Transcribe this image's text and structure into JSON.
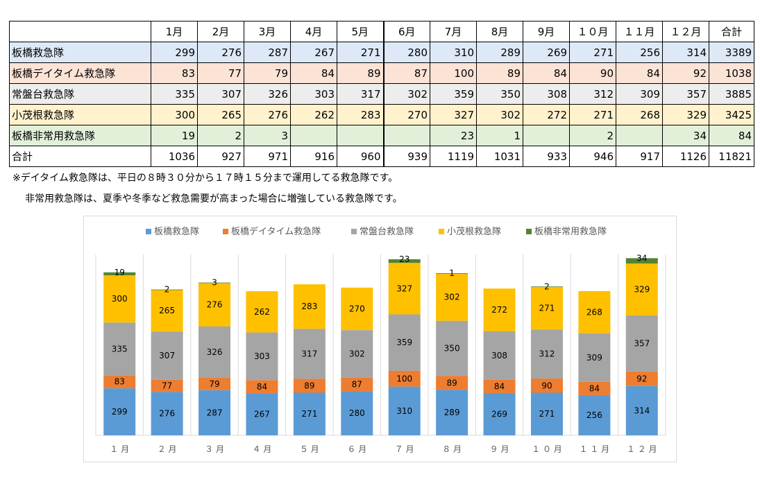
{
  "table": {
    "columns": [
      "1月",
      "2月",
      "3月",
      "4月",
      "5月",
      "6月",
      "7月",
      "8月",
      "9月",
      "１０月",
      "１１月",
      "１２月",
      "合計"
    ],
    "rows": [
      {
        "name": "板橋救急隊",
        "values": [
          "299",
          "276",
          "287",
          "267",
          "271",
          "280",
          "310",
          "289",
          "269",
          "271",
          "256",
          "314",
          "3389"
        ],
        "bg": "#dde9f6"
      },
      {
        "name": "板橋デイタイム救急隊",
        "values": [
          "83",
          "77",
          "79",
          "84",
          "89",
          "87",
          "100",
          "89",
          "84",
          "90",
          "84",
          "92",
          "1038"
        ],
        "bg": "#fbe3d6"
      },
      {
        "name": "常盤台救急隊",
        "values": [
          "335",
          "307",
          "326",
          "303",
          "317",
          "302",
          "359",
          "350",
          "308",
          "312",
          "309",
          "357",
          "3885"
        ],
        "bg": "#ededed"
      },
      {
        "name": "小茂根救急隊",
        "values": [
          "300",
          "265",
          "276",
          "262",
          "283",
          "270",
          "327",
          "302",
          "272",
          "271",
          "268",
          "329",
          "3425"
        ],
        "bg": "#fff2cc"
      },
      {
        "name": "板橋非常用救急隊",
        "values": [
          "19",
          "2",
          "3",
          "",
          "",
          "",
          "23",
          "1",
          "",
          "2",
          "",
          "34",
          "84"
        ],
        "bg": "#e2f0d9"
      },
      {
        "name": "合計",
        "values": [
          "1036",
          "927",
          "971",
          "916",
          "960",
          "939",
          "1119",
          "1031",
          "933",
          "946",
          "917",
          "1126",
          "11821"
        ],
        "bg": "#ffffff"
      }
    ]
  },
  "notes": [
    "※デイタイム救急隊は、平日の８時３０分から１７時１５分まで運用してる救急隊です。",
    "非常用救急隊は、夏季や冬季など救急需要が高まった場合に増強している救急隊です。"
  ],
  "chart_data": {
    "type": "bar",
    "stacked": true,
    "categories": [
      "１月",
      "２月",
      "３月",
      "４月",
      "５月",
      "６月",
      "７月",
      "８月",
      "９月",
      "１０月",
      "１１月",
      "１２月"
    ],
    "series": [
      {
        "name": "板橋救急隊",
        "color": "#5b9bd5",
        "values": [
          299,
          276,
          287,
          267,
          271,
          280,
          310,
          289,
          269,
          271,
          256,
          314
        ]
      },
      {
        "name": "板橋デイタイム救急隊",
        "color": "#ed7d31",
        "values": [
          83,
          77,
          79,
          84,
          89,
          87,
          100,
          89,
          84,
          90,
          84,
          92
        ]
      },
      {
        "name": "常盤台救急隊",
        "color": "#a5a5a5",
        "values": [
          335,
          307,
          326,
          303,
          317,
          302,
          359,
          350,
          308,
          312,
          309,
          357
        ]
      },
      {
        "name": "小茂根救急隊",
        "color": "#ffc000",
        "values": [
          300,
          265,
          276,
          262,
          283,
          270,
          327,
          302,
          272,
          271,
          268,
          329
        ]
      },
      {
        "name": "板橋非常用救急隊",
        "color": "#548235",
        "values": [
          19,
          2,
          3,
          null,
          null,
          null,
          23,
          1,
          null,
          2,
          null,
          34
        ]
      }
    ],
    "ylim": [
      0,
      1150
    ],
    "legend": "top",
    "grid": "vertical"
  }
}
